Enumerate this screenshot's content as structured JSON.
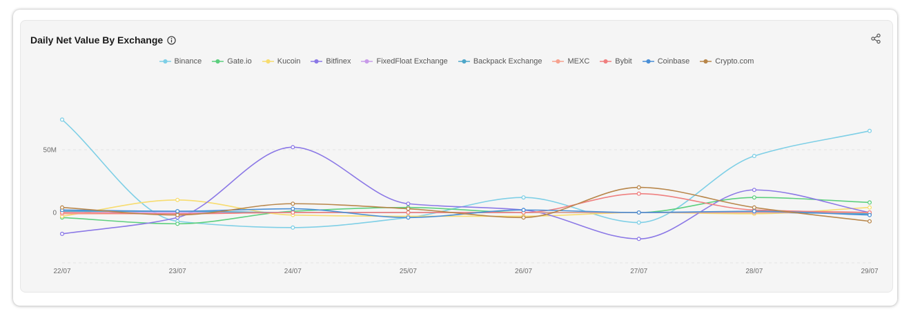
{
  "card": {
    "title": "Daily Net Value By Exchange",
    "info_icon": "info-circle-icon",
    "share_icon": "share-icon"
  },
  "chart_data": {
    "type": "line",
    "title": "Daily Net Value By Exchange",
    "xlabel": "",
    "ylabel": "",
    "categories": [
      "22/07",
      "23/07",
      "24/07",
      "25/07",
      "26/07",
      "27/07",
      "28/07",
      "29/07"
    ],
    "ylim": [
      -40,
      75
    ],
    "y_ticks": [
      0,
      50
    ],
    "y_tick_labels": [
      "0",
      "50M"
    ],
    "grid": "horizontal dashed",
    "legend_position": "top-center",
    "smooth": true,
    "series": [
      {
        "name": "Binance",
        "color": "#7ecfe6",
        "values": [
          74,
          -7,
          -12,
          -4,
          12,
          -8,
          45,
          65
        ]
      },
      {
        "name": "Gate.io",
        "color": "#5ccf7e",
        "values": [
          -4,
          -9,
          1,
          4,
          0,
          0,
          12,
          8
        ]
      },
      {
        "name": "Kucoin",
        "color": "#f7dc6f",
        "values": [
          -3,
          10,
          -2,
          -3,
          -3,
          0,
          -1,
          4
        ]
      },
      {
        "name": "Bitfinex",
        "color": "#8b78e6",
        "values": [
          -17,
          -4,
          52,
          7,
          2,
          -21,
          18,
          0
        ]
      },
      {
        "name": "FixedFloat Exchange",
        "color": "#c89be9",
        "values": [
          0,
          0,
          0,
          0,
          0,
          0,
          0,
          -1
        ]
      },
      {
        "name": "Backpack Exchange",
        "color": "#4fa7c9",
        "values": [
          1,
          1,
          0,
          0,
          0,
          0,
          0,
          -1
        ]
      },
      {
        "name": "MEXC",
        "color": "#f6a28f",
        "values": [
          -1,
          -1,
          0,
          0,
          0,
          0,
          0,
          0
        ]
      },
      {
        "name": "Bybit",
        "color": "#ef7f7f",
        "values": [
          0,
          -1,
          0,
          0,
          0,
          15,
          2,
          0
        ]
      },
      {
        "name": "Coinbase",
        "color": "#4a8fd6",
        "values": [
          2,
          1,
          3,
          -4,
          2,
          0,
          1,
          -2
        ]
      },
      {
        "name": "Crypto.com",
        "color": "#b8864a",
        "values": [
          4,
          -2,
          7,
          3,
          -4,
          20,
          4,
          -7
        ]
      }
    ]
  }
}
